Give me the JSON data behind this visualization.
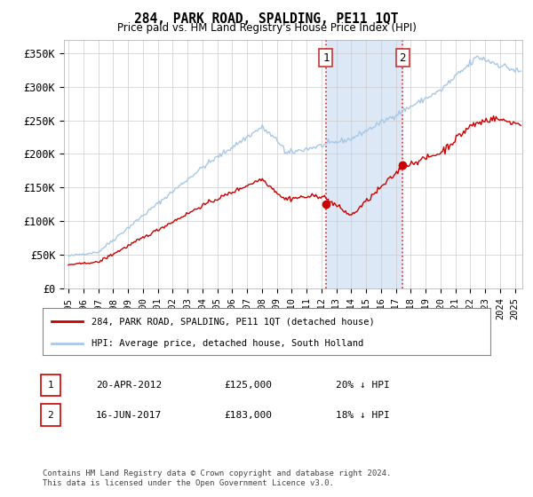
{
  "title": "284, PARK ROAD, SPALDING, PE11 1QT",
  "subtitle": "Price paid vs. HM Land Registry's House Price Index (HPI)",
  "ylabel_ticks": [
    "£0",
    "£50K",
    "£100K",
    "£150K",
    "£200K",
    "£250K",
    "£300K",
    "£350K"
  ],
  "ytick_values": [
    0,
    50000,
    100000,
    150000,
    200000,
    250000,
    300000,
    350000
  ],
  "ylim": [
    0,
    370000
  ],
  "xlim_start": 1995.0,
  "xlim_end": 2025.5,
  "legend_line1": "284, PARK ROAD, SPALDING, PE11 1QT (detached house)",
  "legend_line2": "HPI: Average price, detached house, South Holland",
  "annotation1_num": "1",
  "annotation1_date": "20-APR-2012",
  "annotation1_price": "£125,000",
  "annotation1_pct": "20% ↓ HPI",
  "annotation2_num": "2",
  "annotation2_date": "16-JUN-2017",
  "annotation2_price": "£183,000",
  "annotation2_pct": "18% ↓ HPI",
  "footnote": "Contains HM Land Registry data © Crown copyright and database right 2024.\nThis data is licensed under the Open Government Licence v3.0.",
  "marker1_x": 2012.3,
  "marker1_y": 125000,
  "marker2_x": 2017.45,
  "marker2_y": 183000,
  "dotted_line1_x": 2012.3,
  "dotted_line2_x": 2017.45,
  "shaded_region_start": 2012.3,
  "shaded_region_end": 2017.45,
  "hpi_color": "#a8c8e8",
  "price_color": "#cc0000",
  "shaded_color": "#dce8f5",
  "marker_color": "#cc0000",
  "background_color": "#ffffff"
}
